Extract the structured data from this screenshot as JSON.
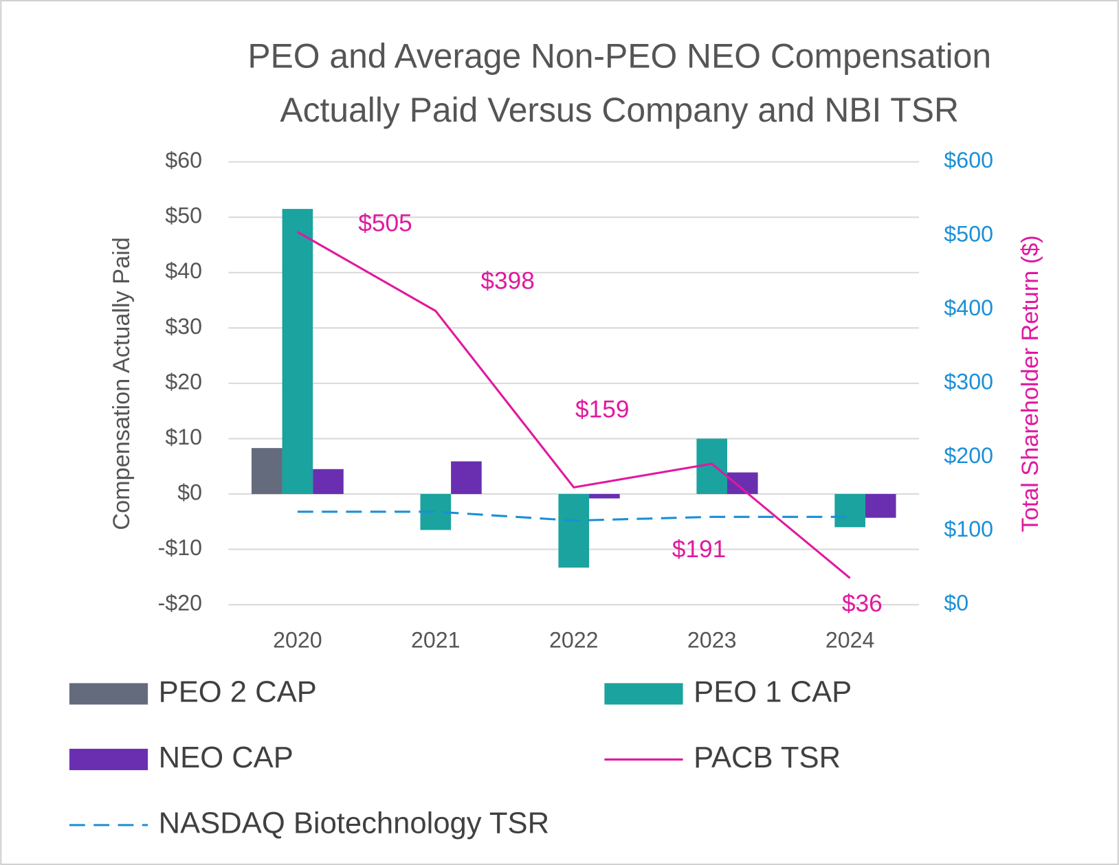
{
  "chart_data": {
    "type": "bar",
    "title": [
      "PEO and Average Non-PEO NEO Compensation",
      "Actually Paid Versus Company and NBI TSR"
    ],
    "ylabel": "Compensation Actually Paid",
    "y2label": "Total Shareholder Return ($)",
    "categories": [
      "2020",
      "2021",
      "2022",
      "2023",
      "2024"
    ],
    "ylim": [
      -20,
      60
    ],
    "yticks": [
      {
        "value": -20,
        "label": "-$20"
      },
      {
        "value": -10,
        "label": "-$10"
      },
      {
        "value": 0,
        "label": "$0"
      },
      {
        "value": 10,
        "label": "$10"
      },
      {
        "value": 20,
        "label": "$20"
      },
      {
        "value": 30,
        "label": "$30"
      },
      {
        "value": 40,
        "label": "$40"
      },
      {
        "value": 50,
        "label": "$50"
      },
      {
        "value": 60,
        "label": "$60"
      }
    ],
    "y2lim": [
      0,
      600
    ],
    "y2ticks": [
      {
        "value": 0,
        "label": "$0"
      },
      {
        "value": 100,
        "label": "$100"
      },
      {
        "value": 200,
        "label": "$200"
      },
      {
        "value": 300,
        "label": "$300"
      },
      {
        "value": 400,
        "label": "$400"
      },
      {
        "value": 500,
        "label": "$500"
      },
      {
        "value": 600,
        "label": "$600"
      }
    ],
    "grid": true,
    "legend": "bottom",
    "series": [
      {
        "name": "PEO 2 CAP",
        "color": "#636b7c",
        "type": "bar",
        "values": [
          8.3,
          null,
          null,
          null,
          null
        ]
      },
      {
        "name": "PEO 1 CAP",
        "color": "#1aa39f",
        "type": "bar",
        "values": [
          51.5,
          -6.5,
          -13.3,
          10,
          -6
        ]
      },
      {
        "name": "NEO CAP",
        "color": "#6a2fb0",
        "type": "bar",
        "values": [
          4.5,
          5.9,
          -0.8,
          3.9,
          -4.3
        ]
      },
      {
        "name": "PACB TSR",
        "color": "#e0199f",
        "type": "line",
        "axis": "y2",
        "values": [
          505,
          398,
          159,
          191,
          36
        ],
        "value_labels": [
          "$505",
          "$398",
          "$159",
          "$191",
          "$36"
        ]
      },
      {
        "name": "NASDAQ Biotechnology TSR",
        "color": "#1b8fd6",
        "type": "line",
        "axis": "y2",
        "dashed": true,
        "values": [
          126,
          126,
          114,
          119,
          119
        ]
      }
    ]
  }
}
